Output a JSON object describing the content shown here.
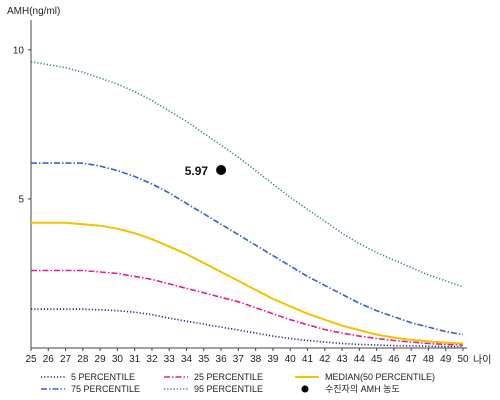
{
  "chart_data": {
    "type": "line",
    "ylabel": "AMH(ng/ml)",
    "xlabel": "나이",
    "xlim": [
      25,
      50
    ],
    "ylim": [
      0,
      11
    ],
    "yticks": [
      5,
      10
    ],
    "x": [
      25,
      26,
      27,
      28,
      29,
      30,
      31,
      32,
      33,
      34,
      35,
      36,
      37,
      38,
      39,
      40,
      41,
      42,
      43,
      44,
      45,
      46,
      47,
      48,
      49,
      50
    ],
    "grid": false,
    "legend_position": "bottom",
    "series": [
      {
        "name": "5 PERCENTILE",
        "color": "#1f2a7a",
        "style": "dotted",
        "values": [
          1.3,
          1.3,
          1.3,
          1.3,
          1.28,
          1.25,
          1.2,
          1.12,
          1.0,
          0.9,
          0.8,
          0.7,
          0.6,
          0.5,
          0.4,
          0.32,
          0.25,
          0.2,
          0.15,
          0.12,
          0.1,
          0.08,
          0.07,
          0.06,
          0.05,
          0.05
        ]
      },
      {
        "name": "75 PERCENTILE",
        "color": "#3a5fc8",
        "style": "dashdot",
        "values": [
          6.2,
          6.2,
          6.2,
          6.2,
          6.1,
          5.95,
          5.75,
          5.5,
          5.2,
          4.85,
          4.5,
          4.15,
          3.8,
          3.45,
          3.1,
          2.75,
          2.4,
          2.1,
          1.8,
          1.5,
          1.25,
          1.05,
          0.85,
          0.7,
          0.55,
          0.45
        ]
      },
      {
        "name": "25 PERCENTILE",
        "color": "#e0208c",
        "style": "dashdot",
        "values": [
          2.6,
          2.6,
          2.6,
          2.6,
          2.55,
          2.5,
          2.4,
          2.3,
          2.15,
          2.0,
          1.85,
          1.7,
          1.55,
          1.35,
          1.15,
          0.95,
          0.78,
          0.62,
          0.5,
          0.4,
          0.32,
          0.25,
          0.2,
          0.15,
          0.12,
          0.1
        ]
      },
      {
        "name": "95 PERCENTILE",
        "color": "#2e8b57",
        "style": "dotted",
        "values": [
          9.6,
          9.5,
          9.4,
          9.25,
          9.05,
          8.85,
          8.6,
          8.3,
          7.95,
          7.6,
          7.2,
          6.8,
          6.4,
          5.95,
          5.5,
          5.05,
          4.65,
          4.25,
          3.85,
          3.5,
          3.2,
          2.95,
          2.7,
          2.45,
          2.25,
          2.05
        ]
      },
      {
        "name": "MEDIAN(50 PERCENTILE)",
        "color": "#f2c200",
        "style": "solid",
        "values": [
          4.2,
          4.2,
          4.2,
          4.15,
          4.1,
          4.0,
          3.85,
          3.65,
          3.4,
          3.15,
          2.85,
          2.55,
          2.25,
          1.95,
          1.65,
          1.4,
          1.15,
          0.95,
          0.75,
          0.6,
          0.45,
          0.35,
          0.28,
          0.22,
          0.18,
          0.15
        ]
      }
    ],
    "point": {
      "name": "수진자의 AMH 농도",
      "x": 36,
      "y": 5.97,
      "label": "5.97",
      "color": "#000000"
    },
    "legend": [
      {
        "key": "s0",
        "label": "5 PERCENTILE"
      },
      {
        "key": "s2",
        "label": "25 PERCENTILE"
      },
      {
        "key": "s4",
        "label": "MEDIAN(50 PERCENTILE)"
      },
      {
        "key": "s1",
        "label": "75 PERCENTILE"
      },
      {
        "key": "s3",
        "label": "95 PERCENTILE"
      },
      {
        "key": "point",
        "label": "수진자의 AMH 농도"
      }
    ]
  }
}
